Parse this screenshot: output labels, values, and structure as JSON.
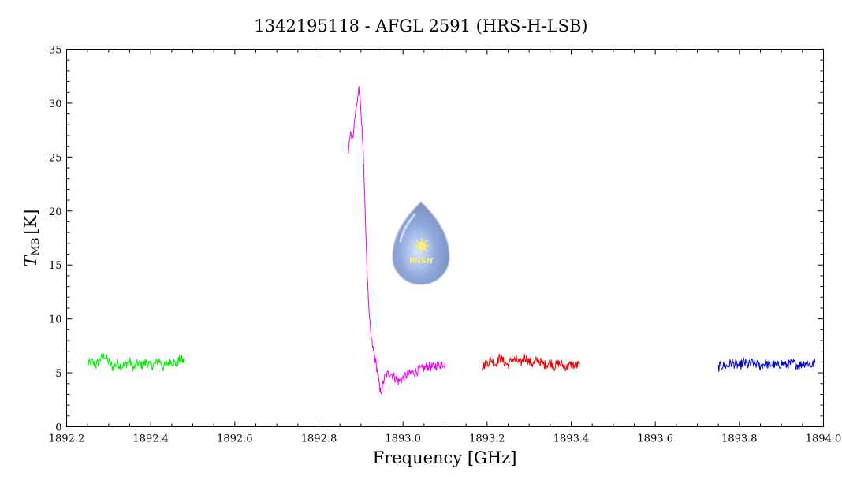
{
  "chart_data": {
    "type": "line",
    "title": "1342195118 - AFGL 2591 (HRS-H-LSB)",
    "xlabel": "Frequency [GHz]",
    "ylabel_main": "T",
    "ylabel_sub": "MB",
    "ylabel_unit": "[K]",
    "xlim": [
      1892.2,
      1894.0
    ],
    "ylim": [
      0,
      35
    ],
    "x_ticks": [
      "1892.2",
      "1892.4",
      "1892.6",
      "1892.8",
      "1893.0",
      "1893.2",
      "1893.4",
      "1893.6",
      "1893.8",
      "1894.0"
    ],
    "y_ticks": [
      "0",
      "5",
      "10",
      "15",
      "20",
      "25",
      "30",
      "35"
    ],
    "grid": false,
    "logo_text": "WISH",
    "series": [
      {
        "color": "#00ee00",
        "x": [
          1892.25,
          1892.26,
          1892.27,
          1892.28,
          1892.29,
          1892.3,
          1892.31,
          1892.32,
          1892.33,
          1892.34,
          1892.35,
          1892.36,
          1892.37,
          1892.38,
          1892.39,
          1892.4,
          1892.41,
          1892.42,
          1892.43,
          1892.44,
          1892.45,
          1892.46,
          1892.47,
          1892.48
        ],
        "y": [
          5.8,
          6.0,
          5.7,
          6.3,
          6.6,
          6.0,
          5.5,
          5.9,
          5.6,
          5.8,
          6.1,
          5.4,
          5.9,
          5.7,
          6.0,
          5.6,
          5.8,
          6.2,
          5.5,
          5.9,
          6.1,
          5.8,
          6.3,
          6.0
        ]
      },
      {
        "color": "#ee00ee",
        "x": [
          1892.87,
          1892.875,
          1892.88,
          1892.885,
          1892.89,
          1892.895,
          1892.9,
          1892.905,
          1892.91,
          1892.915,
          1892.92,
          1892.925,
          1892.93,
          1892.935,
          1892.94,
          1892.945,
          1892.95,
          1892.955,
          1892.96,
          1892.97,
          1892.98,
          1892.99,
          1893.0,
          1893.01,
          1893.02,
          1893.03,
          1893.04,
          1893.05,
          1893.06,
          1893.07,
          1893.08,
          1893.09,
          1893.1
        ],
        "y": [
          25.5,
          27.2,
          26.8,
          28.5,
          29.8,
          31.5,
          29.0,
          26.0,
          20.0,
          14.0,
          10.0,
          8.0,
          7.0,
          6.0,
          5.0,
          3.2,
          3.5,
          4.4,
          4.8,
          5.0,
          4.6,
          4.2,
          4.5,
          4.8,
          5.0,
          5.1,
          5.3,
          5.4,
          5.6,
          5.5,
          5.7,
          5.8,
          5.9
        ]
      },
      {
        "color": "#ee0000",
        "x": [
          1893.19,
          1893.2,
          1893.21,
          1893.22,
          1893.23,
          1893.24,
          1893.25,
          1893.26,
          1893.27,
          1893.28,
          1893.29,
          1893.3,
          1893.31,
          1893.32,
          1893.33,
          1893.34,
          1893.35,
          1893.36,
          1893.37,
          1893.38,
          1893.39,
          1893.4,
          1893.41,
          1893.42
        ],
        "y": [
          5.6,
          5.9,
          6.2,
          5.8,
          6.4,
          6.0,
          5.7,
          6.3,
          6.1,
          5.9,
          6.5,
          6.0,
          5.8,
          6.2,
          5.9,
          5.7,
          6.0,
          5.6,
          5.9,
          5.7,
          5.5,
          5.8,
          5.6,
          5.8
        ]
      },
      {
        "color": "#0000dd",
        "x": [
          1893.75,
          1893.76,
          1893.77,
          1893.78,
          1893.79,
          1893.8,
          1893.81,
          1893.82,
          1893.83,
          1893.84,
          1893.85,
          1893.86,
          1893.87,
          1893.88,
          1893.89,
          1893.9,
          1893.91,
          1893.92,
          1893.93,
          1893.94,
          1893.95,
          1893.96,
          1893.97,
          1893.98
        ],
        "y": [
          5.5,
          5.7,
          5.6,
          5.9,
          5.8,
          5.6,
          6.0,
          5.7,
          5.9,
          5.8,
          5.6,
          5.9,
          5.7,
          5.8,
          5.6,
          5.9,
          5.7,
          5.8,
          5.9,
          5.7,
          5.8,
          6.0,
          5.7,
          5.9
        ]
      }
    ]
  }
}
